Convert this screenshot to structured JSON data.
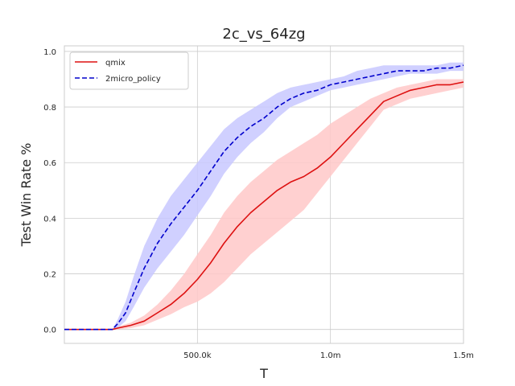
{
  "chart_data": {
    "type": "line",
    "title": "2c_vs_64zg",
    "xlabel": "T",
    "ylabel": "Test Win Rate %",
    "xlim": [
      0,
      1500000
    ],
    "ylim": [
      -0.05,
      1.02
    ],
    "x_ticks": [
      {
        "value": 500000,
        "label": "500.0k"
      },
      {
        "value": 1000000,
        "label": "1.0m"
      },
      {
        "value": 1500000,
        "label": "1.5m"
      }
    ],
    "y_ticks": [
      {
        "value": 0.0,
        "label": "0.0"
      },
      {
        "value": 0.2,
        "label": "0.2"
      },
      {
        "value": 0.4,
        "label": "0.4"
      },
      {
        "value": 0.6,
        "label": "0.6"
      },
      {
        "value": 0.8,
        "label": "0.8"
      },
      {
        "value": 1.0,
        "label": "1.0"
      }
    ],
    "grid": true,
    "legend_position": "top-left",
    "series": [
      {
        "name": "qmix",
        "color": "#dd1111",
        "band_color": "#ffc8c8",
        "style": "solid",
        "x": [
          0,
          100000,
          180000,
          200000,
          250000,
          300000,
          350000,
          400000,
          450000,
          500000,
          550000,
          600000,
          650000,
          700000,
          750000,
          800000,
          850000,
          900000,
          950000,
          1000000,
          1050000,
          1100000,
          1150000,
          1200000,
          1250000,
          1300000,
          1350000,
          1400000,
          1450000,
          1500000
        ],
        "values": [
          0,
          0,
          0,
          0.005,
          0.015,
          0.03,
          0.06,
          0.09,
          0.13,
          0.18,
          0.24,
          0.31,
          0.37,
          0.42,
          0.46,
          0.5,
          0.53,
          0.55,
          0.58,
          0.62,
          0.67,
          0.72,
          0.77,
          0.82,
          0.84,
          0.86,
          0.87,
          0.88,
          0.88,
          0.89
        ],
        "lower": [
          0,
          0,
          0,
          0.0,
          0.005,
          0.015,
          0.035,
          0.055,
          0.08,
          0.1,
          0.13,
          0.17,
          0.22,
          0.27,
          0.31,
          0.35,
          0.39,
          0.43,
          0.49,
          0.55,
          0.61,
          0.67,
          0.73,
          0.79,
          0.81,
          0.83,
          0.84,
          0.85,
          0.86,
          0.87
        ],
        "upper": [
          0,
          0,
          0,
          0.01,
          0.025,
          0.05,
          0.09,
          0.14,
          0.2,
          0.27,
          0.34,
          0.42,
          0.48,
          0.53,
          0.57,
          0.61,
          0.64,
          0.67,
          0.7,
          0.74,
          0.77,
          0.8,
          0.83,
          0.85,
          0.87,
          0.88,
          0.89,
          0.9,
          0.9,
          0.9
        ]
      },
      {
        "name": "2micro_policy",
        "color": "#0000cc",
        "band_color": "#c8c8ff",
        "style": "dashed",
        "x": [
          0,
          100000,
          180000,
          200000,
          230000,
          260000,
          300000,
          350000,
          400000,
          450000,
          500000,
          550000,
          600000,
          650000,
          700000,
          750000,
          800000,
          850000,
          900000,
          950000,
          1000000,
          1050000,
          1100000,
          1150000,
          1200000,
          1250000,
          1300000,
          1350000,
          1400000,
          1450000,
          1500000
        ],
        "values": [
          0,
          0,
          0,
          0.02,
          0.06,
          0.13,
          0.22,
          0.31,
          0.38,
          0.44,
          0.5,
          0.57,
          0.64,
          0.69,
          0.73,
          0.76,
          0.8,
          0.83,
          0.85,
          0.86,
          0.88,
          0.89,
          0.9,
          0.91,
          0.92,
          0.93,
          0.93,
          0.93,
          0.94,
          0.94,
          0.95
        ],
        "lower": [
          0,
          0,
          0,
          0.005,
          0.03,
          0.08,
          0.15,
          0.22,
          0.28,
          0.34,
          0.41,
          0.48,
          0.56,
          0.62,
          0.67,
          0.71,
          0.76,
          0.8,
          0.82,
          0.84,
          0.86,
          0.87,
          0.88,
          0.89,
          0.9,
          0.91,
          0.92,
          0.92,
          0.92,
          0.93,
          0.93
        ],
        "upper": [
          0,
          0,
          0,
          0.035,
          0.1,
          0.19,
          0.3,
          0.4,
          0.48,
          0.54,
          0.6,
          0.66,
          0.72,
          0.76,
          0.79,
          0.82,
          0.85,
          0.87,
          0.88,
          0.89,
          0.9,
          0.91,
          0.93,
          0.94,
          0.95,
          0.95,
          0.95,
          0.95,
          0.95,
          0.96,
          0.96
        ]
      }
    ]
  }
}
